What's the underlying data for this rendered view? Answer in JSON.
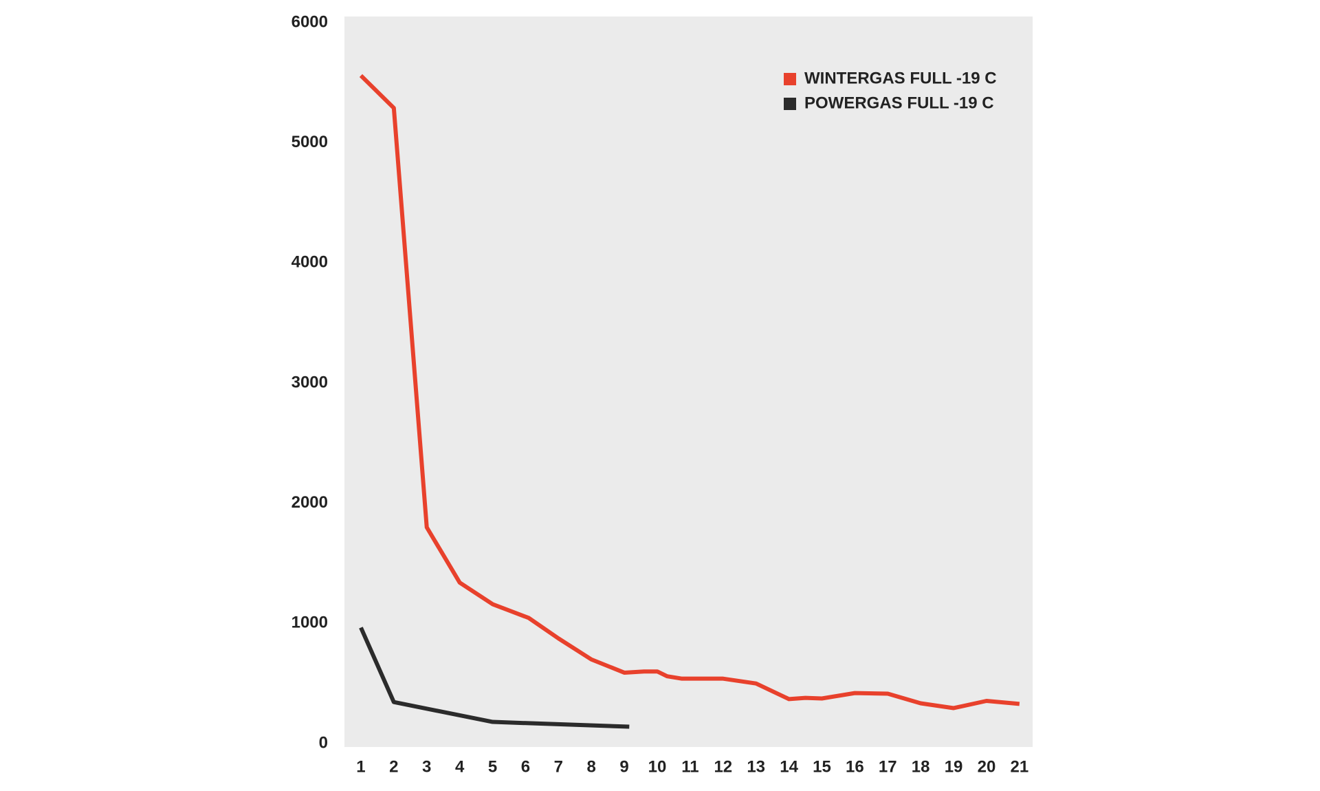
{
  "chart_data": {
    "type": "line",
    "xlim": [
      0.5,
      21.4
    ],
    "ylim": [
      0,
      6000
    ],
    "xticks": [
      1,
      2,
      3,
      4,
      5,
      6,
      7,
      8,
      9,
      10,
      11,
      12,
      13,
      14,
      15,
      16,
      17,
      18,
      19,
      20,
      21
    ],
    "yticks": [
      0,
      1000,
      2000,
      3000,
      4000,
      5000,
      6000
    ],
    "grid": false,
    "legend": "upper right",
    "series": [
      {
        "name": "WINTERGAS FULL -19 C",
        "color": "#e8412c",
        "x": [
          1,
          2,
          3,
          4,
          5,
          6.1,
          7,
          8,
          9,
          9.6,
          10,
          10.3,
          10.75,
          12,
          13,
          14,
          14.5,
          15,
          16,
          17,
          18,
          19,
          20,
          21
        ],
        "values": [
          5560,
          5290,
          1800,
          1340,
          1160,
          1045,
          875,
          700,
          590,
          600,
          600,
          560,
          540,
          540,
          500,
          370,
          380,
          375,
          420,
          415,
          335,
          295,
          355,
          330
        ]
      },
      {
        "name": "POWERGAS FULL -19 C",
        "color": "#2b2b2b",
        "x": [
          1,
          2,
          5,
          9.15
        ],
        "values": [
          965,
          345,
          180,
          140
        ]
      }
    ]
  }
}
